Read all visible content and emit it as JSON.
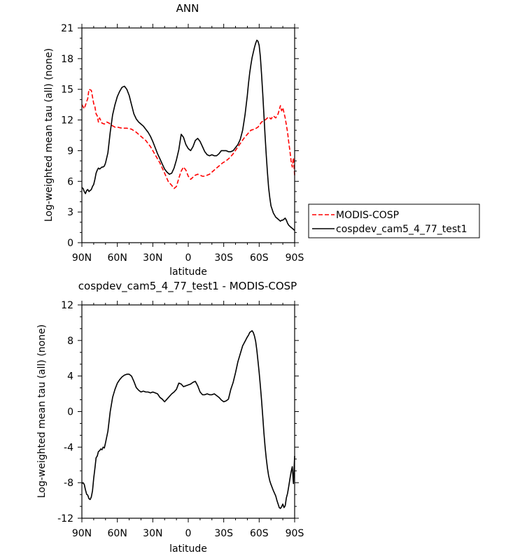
{
  "chart_data": [
    {
      "type": "line",
      "title": "ANN",
      "xlabel": "latitude",
      "ylabel": "Log-weighted mean tau (all) (none)",
      "xlim": [
        90,
        -90
      ],
      "ylim": [
        0,
        21
      ],
      "x_ticks": [
        "90N",
        "60N",
        "30N",
        "0",
        "30S",
        "60S",
        "90S"
      ],
      "x_tick_values": [
        90,
        60,
        30,
        0,
        -30,
        -60,
        -90
      ],
      "y_ticks": [
        "0",
        "3",
        "6",
        "9",
        "12",
        "15",
        "18",
        "21"
      ],
      "y_tick_values": [
        0,
        3,
        6,
        9,
        12,
        15,
        18,
        21
      ],
      "legend": "right",
      "series": [
        {
          "name": "MODIS-COSP",
          "color": "#ff0000",
          "dash": "dashed",
          "x": [
            90,
            88,
            86,
            85,
            84,
            82,
            80,
            79,
            78,
            77,
            76,
            75,
            73,
            71,
            69,
            67,
            65,
            62,
            60,
            56,
            52,
            48,
            44,
            40,
            36,
            32,
            28,
            24,
            20,
            17,
            14,
            12,
            10,
            8,
            6,
            4,
            2,
            0,
            -2,
            -4,
            -6,
            -8,
            -10,
            -12,
            -14,
            -16,
            -18,
            -20,
            -23,
            -26,
            -29,
            -32,
            -35,
            -38,
            -41,
            -44,
            -47,
            -50,
            -53,
            -56,
            -59,
            -62,
            -65,
            -68,
            -70,
            -72,
            -74,
            -76,
            -77,
            -78,
            -79,
            -80,
            -81,
            -82,
            -83,
            -84,
            -85,
            -86,
            -87,
            -88,
            -89,
            -90
          ],
          "y": [
            13.5,
            13.1,
            13.8,
            14.1,
            15.0,
            14.9,
            13.6,
            13.3,
            12.6,
            12.4,
            11.8,
            12.2,
            11.7,
            11.6,
            11.8,
            11.7,
            11.5,
            11.3,
            11.3,
            11.2,
            11.2,
            11.1,
            10.8,
            10.4,
            10.0,
            9.4,
            8.6,
            7.8,
            6.8,
            6.0,
            5.6,
            5.3,
            5.5,
            6.3,
            7.0,
            7.4,
            7.1,
            6.5,
            6.2,
            6.4,
            6.6,
            6.7,
            6.6,
            6.5,
            6.5,
            6.6,
            6.7,
            6.9,
            7.2,
            7.5,
            7.8,
            8.0,
            8.3,
            8.7,
            9.2,
            9.7,
            10.2,
            10.6,
            11.0,
            11.1,
            11.3,
            11.8,
            12.0,
            12.3,
            12.1,
            12.4,
            12.2,
            12.6,
            13.0,
            13.4,
            12.9,
            13.2,
            12.7,
            12.2,
            11.5,
            10.8,
            9.8,
            9.0,
            8.0,
            7.4,
            8.3,
            6.6
          ]
        },
        {
          "name": "cospdev_cam5_4_77_test1",
          "color": "#000000",
          "dash": "solid",
          "x": [
            90,
            89,
            88,
            87,
            86,
            85,
            84,
            83,
            82,
            81,
            80,
            79,
            78,
            77,
            76,
            75,
            74,
            73,
            72,
            71,
            70,
            68,
            66,
            64,
            62,
            60,
            58,
            56,
            54,
            52,
            50,
            48,
            46,
            44,
            42,
            40,
            38,
            36,
            34,
            32,
            30,
            28,
            26,
            24,
            22,
            20,
            18,
            16,
            14,
            12,
            10,
            8,
            6,
            4,
            2,
            0,
            -2,
            -4,
            -6,
            -8,
            -10,
            -12,
            -14,
            -16,
            -18,
            -20,
            -22,
            -24,
            -26,
            -28,
            -30,
            -32,
            -34,
            -36,
            -38,
            -40,
            -42,
            -44,
            -46,
            -48,
            -50,
            -51,
            -52,
            -53,
            -54,
            -55,
            -56,
            -57,
            -58,
            -59,
            -60,
            -61,
            -62,
            -63,
            -64,
            -65,
            -66,
            -67,
            -68,
            -69,
            -70,
            -72,
            -74,
            -75,
            -76,
            -77,
            -78,
            -79,
            -80,
            -81,
            -82,
            -83,
            -84,
            -85,
            -86,
            -87,
            -88,
            -89,
            -90
          ],
          "y": [
            5.4,
            5.3,
            5.0,
            4.8,
            5.1,
            5.2,
            5.0,
            5.1,
            5.2,
            5.5,
            5.7,
            6.2,
            6.8,
            7.1,
            7.3,
            7.2,
            7.3,
            7.4,
            7.4,
            7.5,
            7.8,
            8.8,
            10.8,
            12.5,
            13.5,
            14.3,
            14.8,
            15.2,
            15.3,
            15.0,
            14.4,
            13.5,
            12.6,
            12.1,
            11.8,
            11.6,
            11.4,
            11.1,
            10.8,
            10.4,
            9.9,
            9.3,
            8.7,
            8.2,
            7.7,
            7.2,
            6.9,
            6.7,
            6.8,
            7.3,
            8.1,
            9.1,
            10.6,
            10.3,
            9.6,
            9.2,
            9.0,
            9.4,
            10.0,
            10.2,
            9.9,
            9.4,
            8.9,
            8.6,
            8.5,
            8.6,
            8.5,
            8.5,
            8.7,
            9.0,
            9.0,
            9.0,
            8.9,
            8.9,
            9.0,
            9.3,
            9.6,
            10.1,
            11.0,
            12.5,
            14.4,
            15.6,
            16.6,
            17.4,
            18.1,
            18.6,
            19.1,
            19.5,
            19.8,
            19.7,
            19.3,
            18.2,
            16.5,
            14.6,
            12.5,
            10.4,
            8.5,
            6.8,
            5.4,
            4.4,
            3.6,
            2.9,
            2.5,
            2.4,
            2.3,
            2.2,
            2.1,
            2.2,
            2.2,
            2.3,
            2.4,
            2.2,
            1.9,
            1.7,
            1.6,
            1.5,
            1.4,
            1.3,
            1.2
          ]
        }
      ]
    },
    {
      "type": "line",
      "title": "cospdev_cam5_4_77_test1 - MODIS-COSP",
      "xlabel": "latitude",
      "ylabel": "Log-weighted mean tau (all) (none)",
      "xlim": [
        90,
        -90
      ],
      "ylim": [
        -12,
        12
      ],
      "x_ticks": [
        "90N",
        "60N",
        "30N",
        "0",
        "30S",
        "60S",
        "90S"
      ],
      "x_tick_values": [
        90,
        60,
        30,
        0,
        -30,
        -60,
        -90
      ],
      "y_ticks": [
        "-12",
        "-8",
        "-4",
        "0",
        "4",
        "8",
        "12"
      ],
      "y_tick_values": [
        -12,
        -8,
        -4,
        0,
        4,
        8,
        12
      ],
      "series": [
        {
          "color": "#000000",
          "dash": "solid",
          "x": [
            90,
            89,
            88,
            87,
            86,
            85,
            84,
            83,
            82,
            81,
            80,
            79,
            78,
            77,
            76,
            75,
            74,
            73,
            72,
            71,
            70,
            68,
            66,
            64,
            62,
            60,
            58,
            56,
            54,
            52,
            50,
            48,
            46,
            44,
            42,
            40,
            38,
            36,
            34,
            32,
            30,
            28,
            26,
            24,
            22,
            20,
            18,
            16,
            14,
            12,
            10,
            8,
            6,
            4,
            2,
            0,
            -2,
            -4,
            -6,
            -8,
            -10,
            -12,
            -14,
            -16,
            -18,
            -20,
            -22,
            -24,
            -26,
            -28,
            -30,
            -32,
            -34,
            -36,
            -38,
            -40,
            -42,
            -44,
            -46,
            -48,
            -50,
            -51,
            -52,
            -53,
            -54,
            -55,
            -56,
            -57,
            -58,
            -59,
            -60,
            -61,
            -62,
            -63,
            -64,
            -65,
            -66,
            -67,
            -68,
            -69,
            -70,
            -72,
            -74,
            -75,
            -76,
            -77,
            -78,
            -79,
            -80,
            -81,
            -82,
            -83,
            -84,
            -85,
            -86,
            -87,
            -88,
            -89,
            -90
          ],
          "y": [
            -8.1,
            -8.0,
            -8.2,
            -8.8,
            -9.3,
            -9.4,
            -9.8,
            -9.9,
            -9.6,
            -8.9,
            -7.5,
            -6.4,
            -5.2,
            -5.0,
            -4.5,
            -4.4,
            -4.2,
            -4.3,
            -4.0,
            -4.1,
            -3.5,
            -2.2,
            0.0,
            1.6,
            2.5,
            3.2,
            3.6,
            3.9,
            4.1,
            4.2,
            4.2,
            4.0,
            3.4,
            2.7,
            2.4,
            2.2,
            2.3,
            2.2,
            2.2,
            2.1,
            2.2,
            2.1,
            2.0,
            1.6,
            1.4,
            1.1,
            1.4,
            1.7,
            2.0,
            2.2,
            2.5,
            3.2,
            3.1,
            2.8,
            2.9,
            3.0,
            3.1,
            3.3,
            3.4,
            2.9,
            2.2,
            1.9,
            1.9,
            2.0,
            1.9,
            1.9,
            2.0,
            1.8,
            1.6,
            1.3,
            1.1,
            1.2,
            1.4,
            2.5,
            3.3,
            4.4,
            5.6,
            6.5,
            7.4,
            7.9,
            8.4,
            8.6,
            8.9,
            9.0,
            9.1,
            8.9,
            8.5,
            7.9,
            6.9,
            5.7,
            4.4,
            2.9,
            1.3,
            -0.5,
            -2.4,
            -4.0,
            -5.3,
            -6.4,
            -7.2,
            -7.8,
            -8.2,
            -8.9,
            -9.5,
            -10.0,
            -10.4,
            -10.8,
            -10.9,
            -10.7,
            -10.4,
            -10.8,
            -10.6,
            -9.7,
            -9.2,
            -8.4,
            -7.6,
            -6.8,
            -6.2,
            -8.1,
            -5.0
          ]
        }
      ]
    }
  ]
}
